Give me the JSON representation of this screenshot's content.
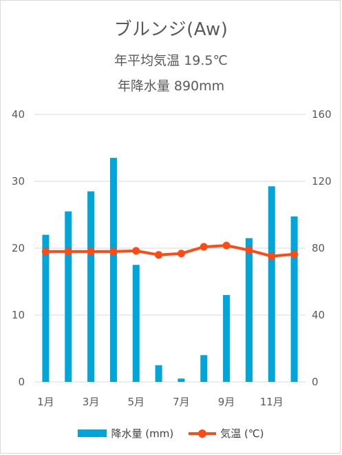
{
  "chart_data": {
    "type": "bar+line",
    "title": "ブルンジ(Aw)",
    "subtitle_lines": [
      "年平均気温 19.5℃",
      "年降水量 890mm"
    ],
    "categories": [
      "1月",
      "2月",
      "3月",
      "4月",
      "5月",
      "6月",
      "7月",
      "8月",
      "9月",
      "10月",
      "11月",
      "12月"
    ],
    "x_tick_labels": [
      "1月",
      "",
      "3月",
      "",
      "5月",
      "",
      "7月",
      "",
      "9月",
      "",
      "11月",
      ""
    ],
    "left_axis": {
      "ticks": [
        "0",
        "10",
        "20",
        "30",
        "40"
      ],
      "ylim": [
        0,
        40
      ]
    },
    "right_axis": {
      "ticks": [
        "0",
        "40",
        "80",
        "120",
        "160"
      ],
      "ylim": [
        0,
        160
      ]
    },
    "grid": true,
    "legend_position": "bottom",
    "series": [
      {
        "name": "降水量 (mm)",
        "type": "bar",
        "axis": "right",
        "color": "#00a5d9",
        "values": [
          88,
          102,
          114,
          134,
          70,
          10,
          2,
          16,
          52,
          86,
          117,
          99
        ]
      },
      {
        "name": "気温 (℃)",
        "type": "line",
        "axis": "left",
        "color": "#ff4a14",
        "values": [
          19.5,
          19.5,
          19.5,
          19.5,
          19.6,
          19.0,
          19.2,
          20.2,
          20.4,
          19.7,
          18.8,
          19.1
        ]
      }
    ]
  }
}
